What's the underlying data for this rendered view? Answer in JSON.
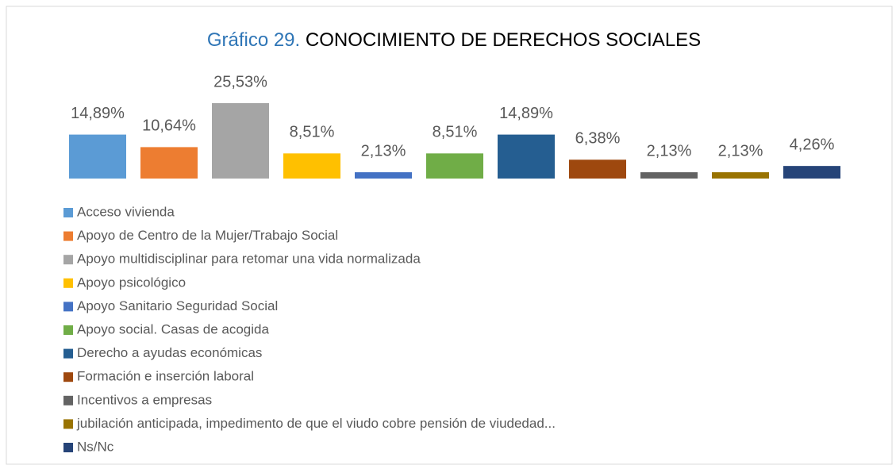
{
  "chart_data": {
    "type": "bar",
    "title": {
      "number": "Gráfico 29.",
      "text": "CONOCIMIENTO DE DERECHOS SOCIALES"
    },
    "categories": [
      "Acceso vivienda",
      "Apoyo de Centro de la Mujer/Trabajo Social",
      "Apoyo multidisciplinar para retomar una vida normalizada",
      "Apoyo psicológico",
      "Apoyo Sanitario Seguridad Social",
      "Apoyo social. Casas de acogida",
      "Derecho a ayudas económicas",
      "Formación e inserción laboral",
      "Incentivos a empresas",
      "jubilación anticipada, impedimento de que el viudo cobre pensión de viudedad...",
      "Ns/Nc"
    ],
    "values": [
      14.89,
      10.64,
      25.53,
      8.51,
      2.13,
      8.51,
      14.89,
      6.38,
      2.13,
      2.13,
      4.26
    ],
    "value_labels": [
      "14,89%",
      "10,64%",
      "25,53%",
      "8,51%",
      "2,13%",
      "8,51%",
      "14,89%",
      "6,38%",
      "2,13%",
      "2,13%",
      "4,26%"
    ],
    "colors": [
      "#5b9bd5",
      "#ed7d31",
      "#a5a5a5",
      "#ffc000",
      "#4472c4",
      "#70ad47",
      "#255e91",
      "#9e480e",
      "#636363",
      "#997300",
      "#264478"
    ],
    "legend": "bottom"
  }
}
